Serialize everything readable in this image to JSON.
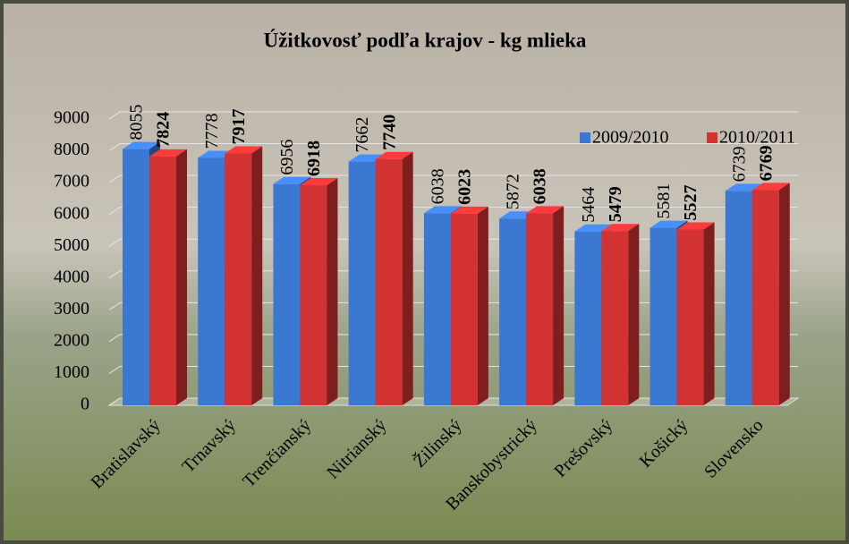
{
  "chart_data": {
    "type": "bar3d",
    "title": "Úžitkovosť podľa krajov - kg  mlieka",
    "categories": [
      "Bratislavský",
      "Trnavský",
      "Trenčianský",
      "Nitrianský",
      "Žilinský",
      "Banskobystrický",
      "Prešovský",
      "Košický",
      "Slovensko"
    ],
    "series": [
      {
        "name": "2009/2010",
        "color": "#3b78d2",
        "values": [
          8055,
          7778,
          6956,
          7662,
          6038,
          5872,
          5464,
          5581,
          6739
        ]
      },
      {
        "name": "2010/2011",
        "color": "#d23232",
        "values": [
          7824,
          7917,
          6918,
          7740,
          6023,
          6038,
          5479,
          5527,
          6769
        ]
      }
    ],
    "ylim": [
      0,
      9000
    ],
    "yticks": [
      0,
      1000,
      2000,
      3000,
      4000,
      5000,
      6000,
      7000,
      8000,
      9000
    ],
    "grid": true,
    "legend": "top-right"
  }
}
